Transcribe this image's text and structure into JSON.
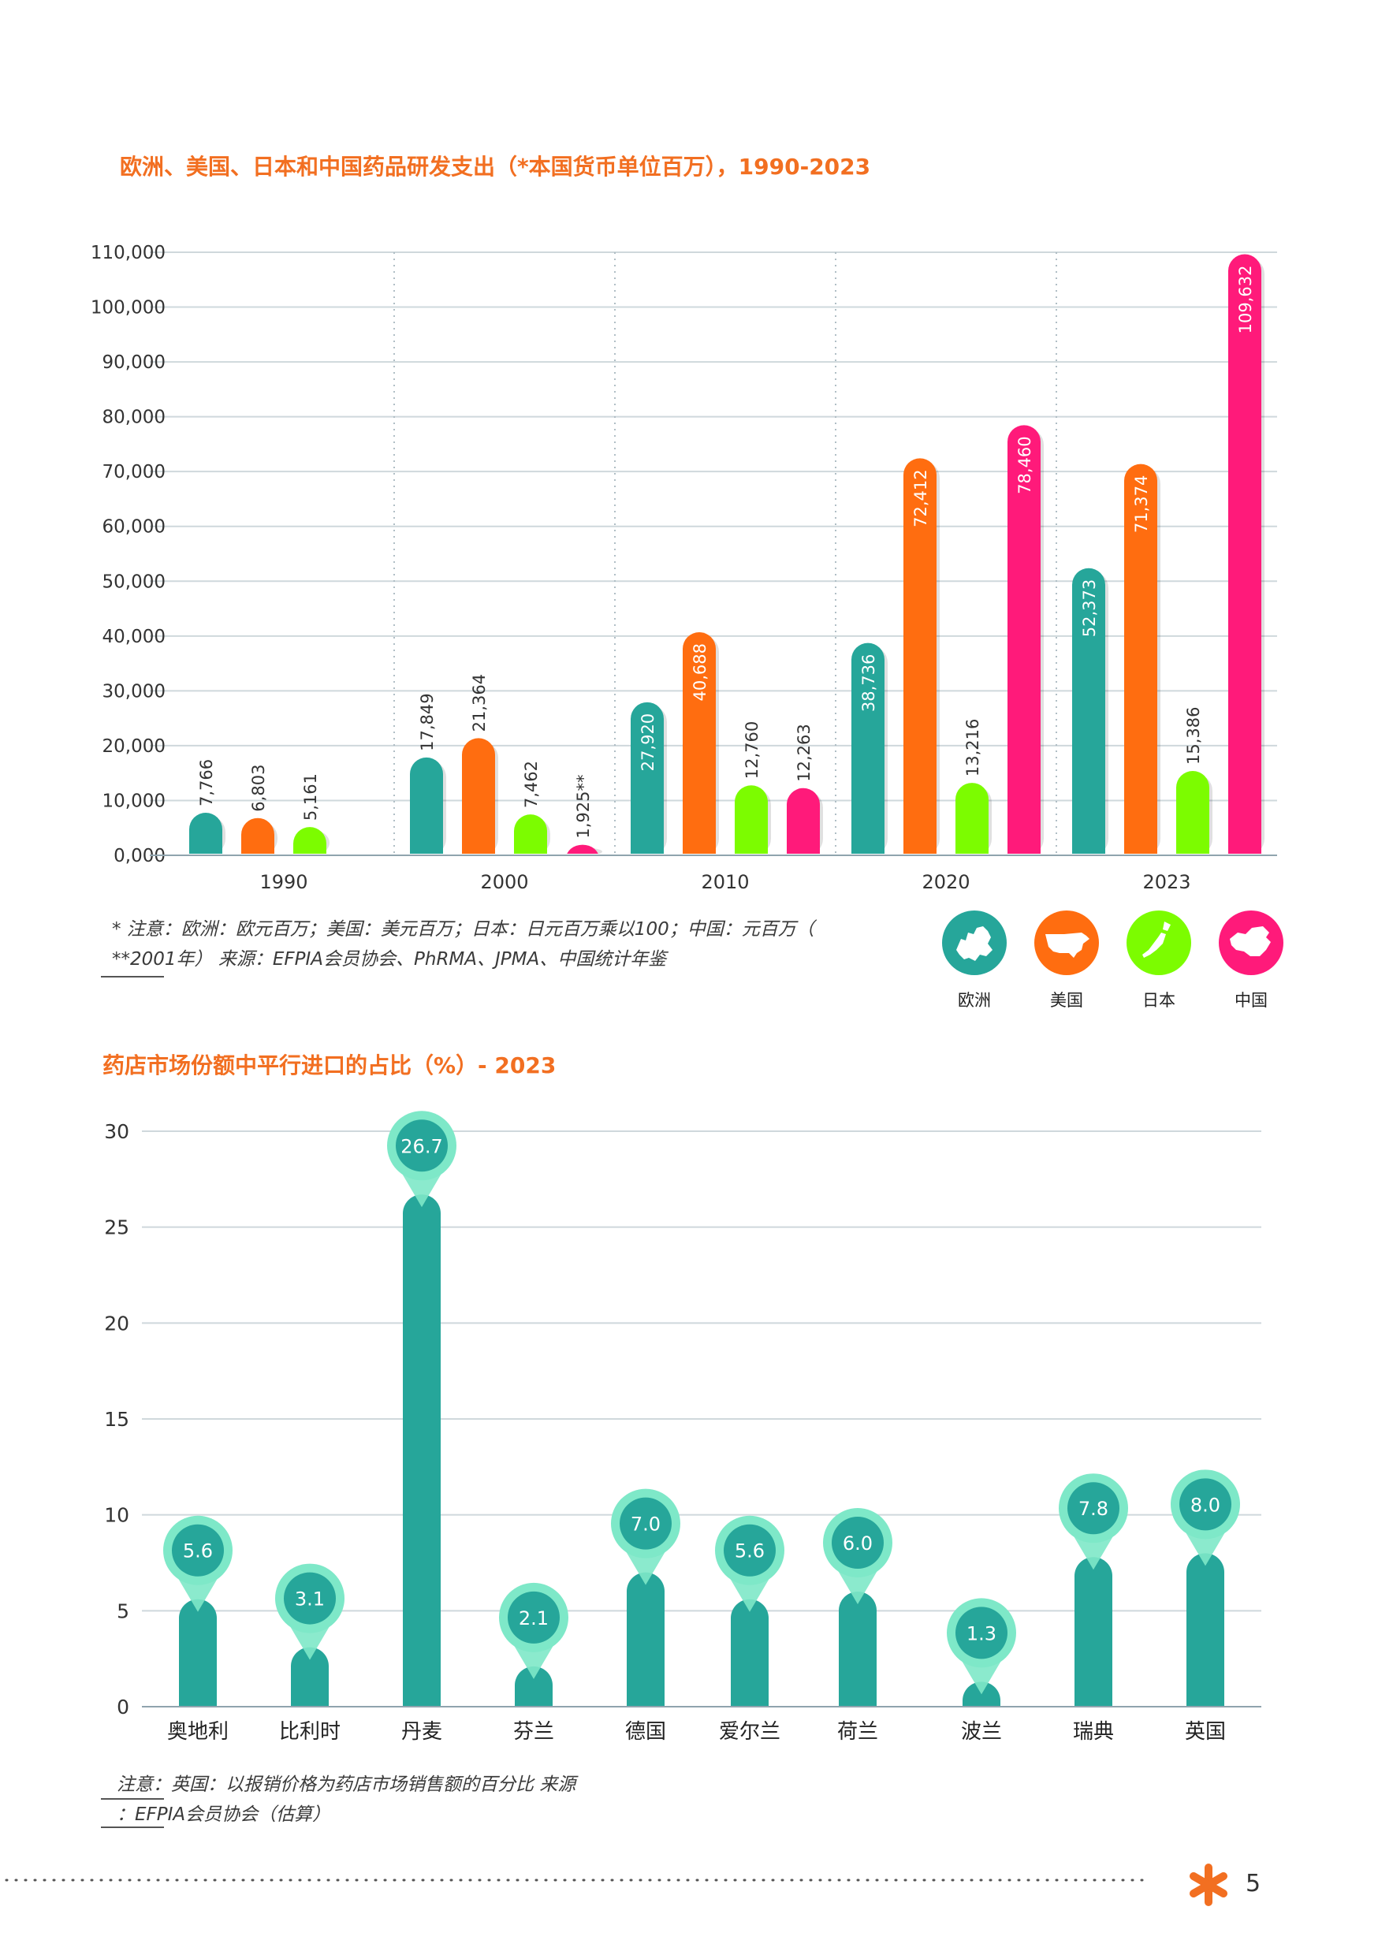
{
  "chart_data": [
    {
      "type": "bar",
      "title": "欧洲、美国、日本和中国药品研发支出（*本国货币单位百万），1990-2023",
      "categories": [
        "1990",
        "2000",
        "2010",
        "2020",
        "2023"
      ],
      "y_ticks": [
        "0,000",
        "10,000",
        "20,000",
        "30,000",
        "40,000",
        "50,000",
        "60,000",
        "70,000",
        "80,000",
        "90,000",
        "100,000",
        "110,000"
      ],
      "ylim": [
        0,
        110000
      ],
      "grid": true,
      "series": [
        {
          "name": "欧洲",
          "color": "#26a69a",
          "values": [
            7766,
            17849,
            27920,
            38736,
            52373
          ],
          "labels": [
            "7,766",
            "17,849",
            "27,920",
            "38,736",
            "52,373"
          ]
        },
        {
          "name": "美国",
          "color": "#ff6d10",
          "values": [
            6803,
            21364,
            40688,
            72412,
            71374
          ],
          "labels": [
            "6,803",
            "21,364",
            "40,688",
            "72,412",
            "71,374"
          ]
        },
        {
          "name": "日本",
          "color": "#7cfc00",
          "values": [
            5161,
            7462,
            12760,
            13216,
            15386
          ],
          "labels": [
            "5,161",
            "7,462",
            "12,760",
            "13,216",
            "15,386"
          ]
        },
        {
          "name": "中国",
          "color": "#ff1a7a",
          "values": [
            null,
            1925,
            12263,
            78460,
            109632
          ],
          "labels": [
            "",
            "1,925**",
            "12,263",
            "78,460",
            "109,632"
          ]
        }
      ],
      "note_line1": "* 注意：欧洲：欧元百万；美国：美元百万；日本：日元百万乘以100；中国：元百万（",
      "note_line2": "**2001年）   来源：EFPIA会员协会、PhRMA、JPMA、中国统计年鉴"
    },
    {
      "type": "bar",
      "title": "药店市场份额中平行进口的占比（%）- 2023",
      "categories": [
        "奥地利",
        "比利时",
        "丹麦",
        "芬兰",
        "德国",
        "爱尔兰",
        "荷兰",
        "波兰",
        "瑞典",
        "英国"
      ],
      "values": [
        5.6,
        3.1,
        26.7,
        2.1,
        7.0,
        5.6,
        6.0,
        1.3,
        7.8,
        8.0
      ],
      "labels": [
        "5.6",
        "3.1",
        "26.7",
        "2.1",
        "7.0",
        "5.6",
        "6.0",
        "1.3",
        "7.8",
        "8.0"
      ],
      "y_ticks": [
        "0",
        "5",
        "10",
        "15",
        "20",
        "25",
        "30"
      ],
      "ylim": [
        0,
        30
      ],
      "grid": true,
      "color": "#26a69a",
      "marker_color": "#7ee8c8",
      "note_line1": "注意：英国：以报销价格为药店市场销售额的百分比   来源",
      "note_line2": "：EFPIA会员协会（估算）"
    }
  ],
  "legend_icons": [
    {
      "label": "欧洲",
      "icon": "europe-map-icon",
      "color": "#26a69a"
    },
    {
      "label": "美国",
      "icon": "usa-map-icon",
      "color": "#ff6d10"
    },
    {
      "label": "日本",
      "icon": "japan-map-icon",
      "color": "#7cfc00"
    },
    {
      "label": "中国",
      "icon": "china-map-icon",
      "color": "#ff1a7a"
    }
  ],
  "footer": {
    "page_number": "5",
    "accent": "#f26f21"
  }
}
